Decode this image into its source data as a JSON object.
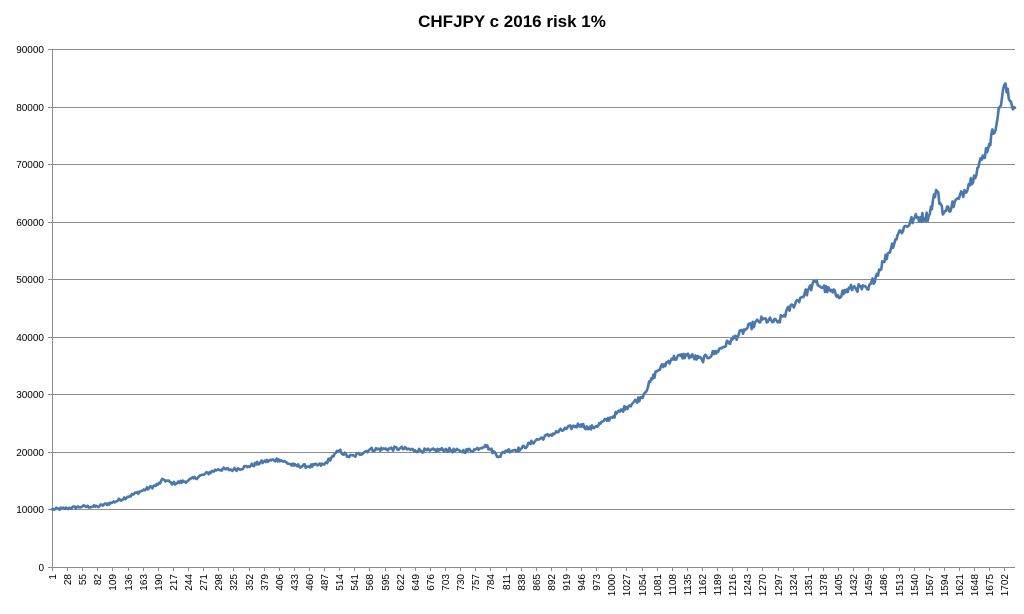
{
  "chart_data": {
    "type": "line",
    "title": "CHFJPY c 2016 risk 1%",
    "xlabel": "",
    "ylabel": "",
    "ylim": [
      0,
      90000
    ],
    "y_ticks": [
      0,
      10000,
      20000,
      30000,
      40000,
      50000,
      60000,
      70000,
      80000,
      90000
    ],
    "x_range": [
      1,
      1721
    ],
    "x_tick_step": 27,
    "x_ticks": [
      1,
      28,
      55,
      82,
      109,
      136,
      163,
      190,
      217,
      244,
      271,
      298,
      325,
      352,
      379,
      406,
      433,
      460,
      487,
      514,
      541,
      568,
      595,
      622,
      649,
      676,
      703,
      730,
      757,
      784,
      811,
      838,
      865,
      892,
      919,
      946,
      973,
      1000,
      1027,
      1054,
      1081,
      1108,
      1135,
      1162,
      1189,
      1216,
      1243,
      1270,
      1297,
      1324,
      1351,
      1378,
      1405,
      1432,
      1459,
      1486,
      1513,
      1540,
      1567,
      1594,
      1621,
      1648,
      1675,
      1702
    ],
    "grid": true,
    "legend": "none",
    "series": [
      {
        "color": "#4a78ac",
        "points": [
          [
            1,
            10000
          ],
          [
            28,
            10200
          ],
          [
            55,
            10500
          ],
          [
            82,
            10500
          ],
          [
            109,
            11200
          ],
          [
            136,
            12200
          ],
          [
            163,
            13300
          ],
          [
            190,
            14300
          ],
          [
            200,
            15200
          ],
          [
            217,
            14500
          ],
          [
            244,
            15000
          ],
          [
            271,
            16000
          ],
          [
            298,
            17000
          ],
          [
            325,
            16900
          ],
          [
            352,
            17500
          ],
          [
            379,
            18300
          ],
          [
            406,
            18700
          ],
          [
            433,
            17600
          ],
          [
            460,
            17500
          ],
          [
            487,
            17800
          ],
          [
            500,
            19000
          ],
          [
            514,
            20200
          ],
          [
            530,
            19200
          ],
          [
            541,
            19300
          ],
          [
            568,
            20400
          ],
          [
            595,
            20500
          ],
          [
            622,
            20600
          ],
          [
            649,
            20300
          ],
          [
            676,
            20200
          ],
          [
            703,
            20400
          ],
          [
            730,
            20100
          ],
          [
            757,
            20400
          ],
          [
            775,
            21200
          ],
          [
            784,
            20400
          ],
          [
            800,
            19200
          ],
          [
            811,
            20200
          ],
          [
            838,
            20500
          ],
          [
            865,
            22000
          ],
          [
            892,
            23000
          ],
          [
            919,
            24000
          ],
          [
            946,
            24800
          ],
          [
            960,
            24000
          ],
          [
            973,
            24500
          ],
          [
            1000,
            26000
          ],
          [
            1027,
            27800
          ],
          [
            1054,
            29500
          ],
          [
            1081,
            34000
          ],
          [
            1108,
            36200
          ],
          [
            1135,
            36800
          ],
          [
            1162,
            36000
          ],
          [
            1189,
            37500
          ],
          [
            1216,
            39500
          ],
          [
            1243,
            41500
          ],
          [
            1270,
            43000
          ],
          [
            1297,
            42500
          ],
          [
            1324,
            45500
          ],
          [
            1351,
            48000
          ],
          [
            1365,
            49500
          ],
          [
            1378,
            48500
          ],
          [
            1405,
            47200
          ],
          [
            1432,
            48600
          ],
          [
            1459,
            48200
          ],
          [
            1486,
            53000
          ],
          [
            1513,
            58000
          ],
          [
            1540,
            60500
          ],
          [
            1567,
            61000
          ],
          [
            1580,
            65500
          ],
          [
            1594,
            61500
          ],
          [
            1621,
            64000
          ],
          [
            1648,
            68000
          ],
          [
            1675,
            73500
          ],
          [
            1690,
            78000
          ],
          [
            1702,
            83800
          ],
          [
            1712,
            81000
          ],
          [
            1721,
            79800
          ]
        ]
      }
    ]
  }
}
